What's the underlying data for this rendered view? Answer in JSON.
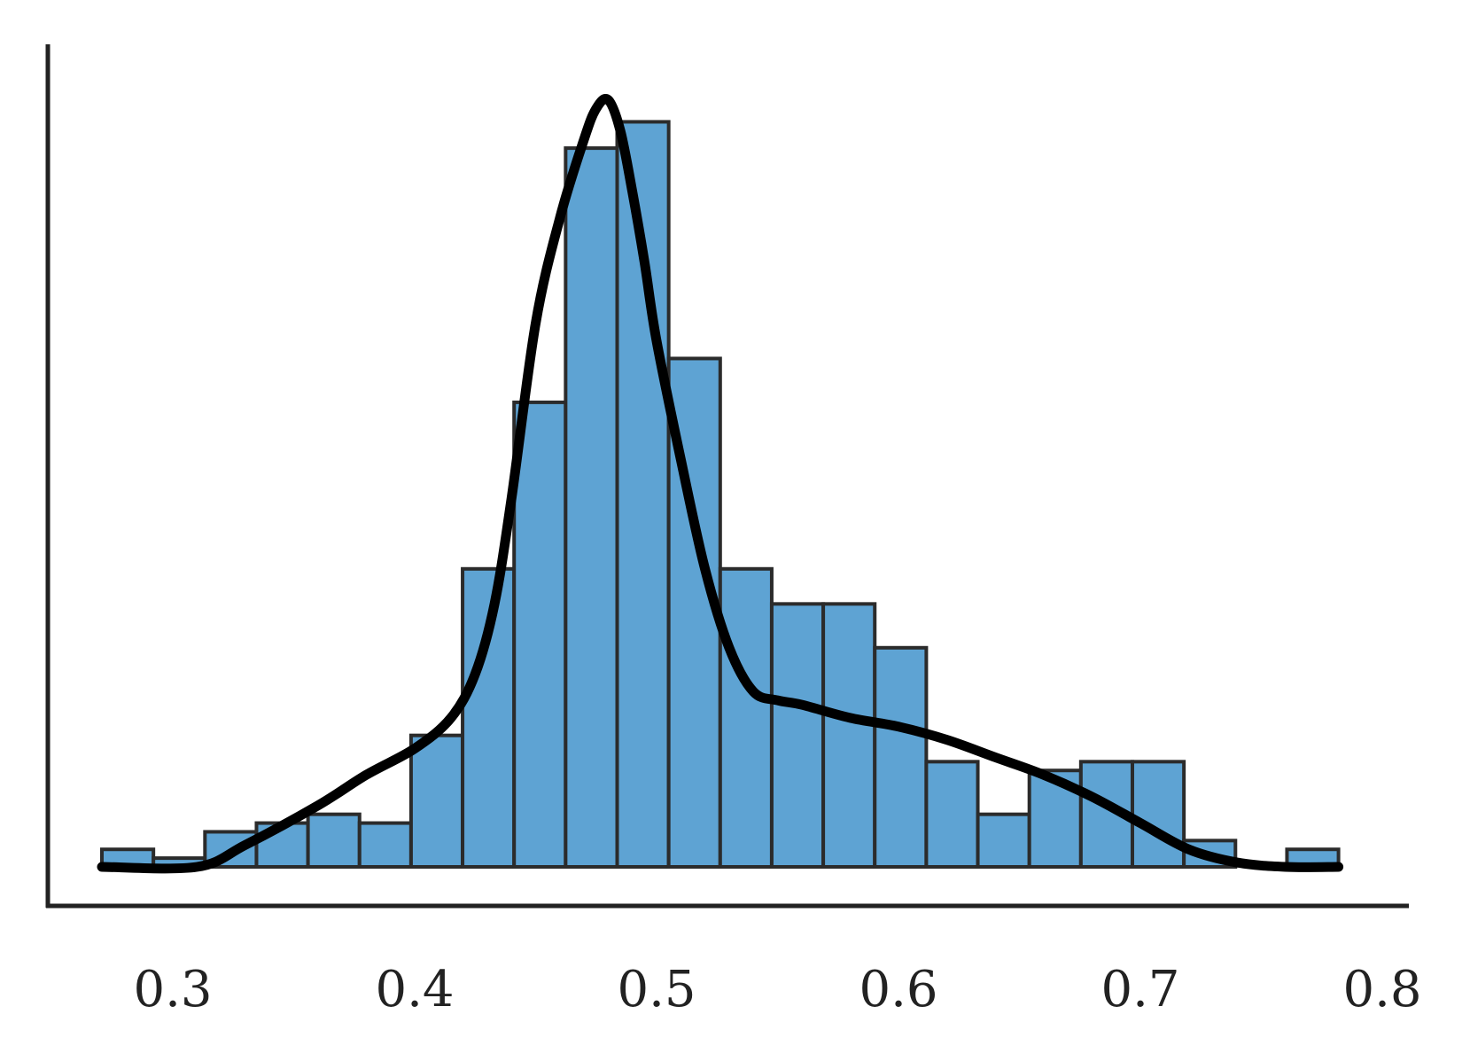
{
  "chart_data": {
    "type": "bar",
    "title": "",
    "xlabel": "",
    "ylabel": "",
    "xlim": [
      0.26,
      0.8
    ],
    "ylim": [
      0,
      90
    ],
    "grid": false,
    "legend": "none",
    "bin_width": 0.0213,
    "bin_edges": [
      0.2707,
      0.292,
      0.3133,
      0.3346,
      0.3559,
      0.3772,
      0.3985,
      0.4198,
      0.4411,
      0.4624,
      0.4837,
      0.505,
      0.5263,
      0.5476,
      0.5689,
      0.5902,
      0.6115,
      0.6328,
      0.6541,
      0.6754,
      0.6967,
      0.718,
      0.7393,
      0.7606,
      0.7819
    ],
    "values": [
      2,
      1,
      4,
      5,
      6,
      5,
      15,
      34,
      53,
      82,
      85,
      58,
      34,
      30,
      30,
      25,
      12,
      6,
      11,
      12,
      12,
      3,
      0,
      2
    ],
    "xticks": [
      0.3,
      0.4,
      0.5,
      0.6,
      0.7,
      0.8
    ],
    "xtick_labels": [
      "0.3",
      "0.4",
      "0.5",
      "0.6",
      "0.7",
      "0.8"
    ],
    "kde": {
      "x": [
        0.2707,
        0.31,
        0.33,
        0.36,
        0.38,
        0.4,
        0.415,
        0.425,
        0.433,
        0.44,
        0.45,
        0.46,
        0.47,
        0.475,
        0.48,
        0.485,
        0.49,
        0.495,
        0.5,
        0.51,
        0.52,
        0.53,
        0.54,
        0.55,
        0.56,
        0.58,
        0.6,
        0.62,
        0.64,
        0.66,
        0.68,
        0.7,
        0.72,
        0.74,
        0.76,
        0.7819
      ],
      "y": [
        0.0,
        0.0,
        2.5,
        7.0,
        10.5,
        13.5,
        17.0,
        22.0,
        30.0,
        42.0,
        62.0,
        74.0,
        83.0,
        86.5,
        87.5,
        84.0,
        77.0,
        69.0,
        60.0,
        46.5,
        34.0,
        25.0,
        20.0,
        19.0,
        18.5,
        17.0,
        16.0,
        14.5,
        12.5,
        10.5,
        8.0,
        5.0,
        2.0,
        0.5,
        0.0,
        0.0
      ]
    },
    "colors": {
      "bar_fill": "#5ea3d3",
      "bar_edge": "#2b2b2b",
      "kde_line": "#000000",
      "axis": "#222222",
      "tick_text": "#222222"
    }
  }
}
